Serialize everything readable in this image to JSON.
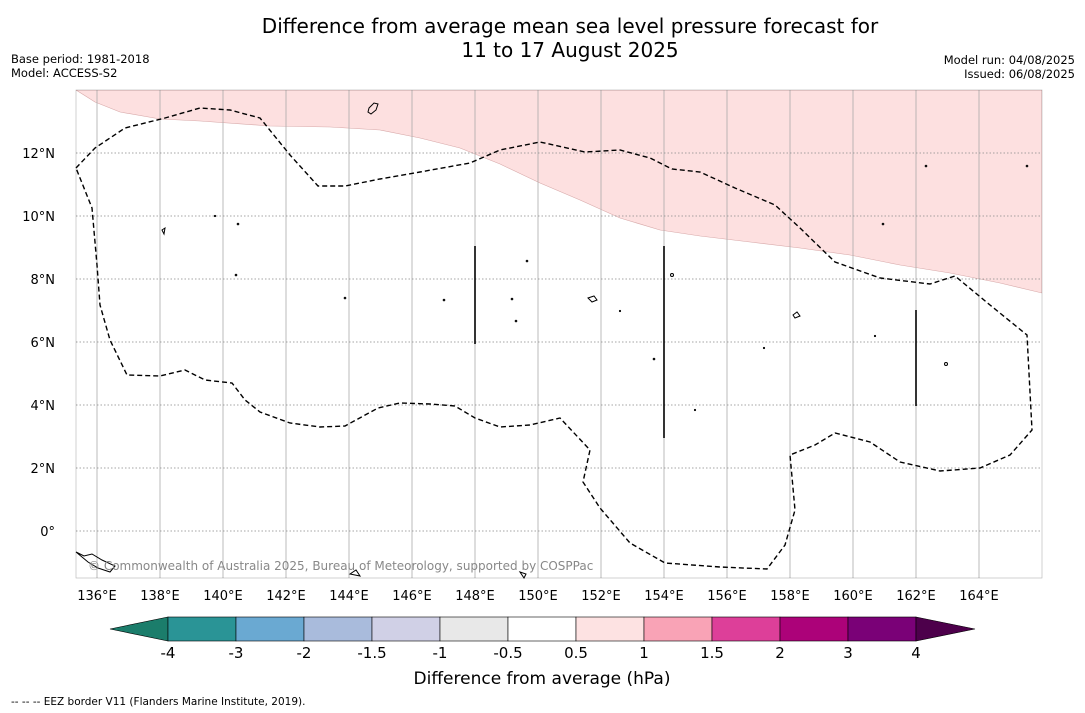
{
  "title_line1": "Difference from average mean sea level pressure forecast for",
  "title_line2": "11 to 17 August 2025",
  "meta": {
    "base_period": "Base period: 1981-2018",
    "model": "Model: ACCESS-S2",
    "model_run": "Model run: 04/08/2025",
    "issued": "Issued: 06/08/2025"
  },
  "map": {
    "lat_labels": [
      "12°N",
      "10°N",
      "8°N",
      "6°N",
      "4°N",
      "2°N",
      "0°"
    ],
    "lon_labels": [
      "136°E",
      "138°E",
      "140°E",
      "142°E",
      "144°E",
      "146°E",
      "148°E",
      "150°E",
      "152°E",
      "154°E",
      "156°E",
      "158°E",
      "160°E",
      "162°E",
      "164°E"
    ],
    "anomaly_region": "0.5 to 1 hPa",
    "copyright": "© Commonwealth of Australia 2025, Bureau of Meteorology, supported by COSPPac"
  },
  "colorbar": {
    "label": "Difference from average (hPa)",
    "ticks": [
      "-4",
      "-3",
      "-2",
      "-1.5",
      "-1",
      "-0.5",
      "0.5",
      "1",
      "1.5",
      "2",
      "3",
      "4"
    ],
    "colors": [
      "#2a9496",
      "#6aa9d2",
      "#a9bbdc",
      "#d0d0e6",
      "#e8e8e8",
      "#ffffff",
      "#fde2e2",
      "#f9a3b6",
      "#dd3f99",
      "#ac0279",
      "#7a0177"
    ],
    "extend_low_color": "#1b7d6b",
    "extend_high_color": "#4d004b"
  },
  "footer": "-- -- -- EEZ border V11 (Flanders Marine Institute, 2019)."
}
